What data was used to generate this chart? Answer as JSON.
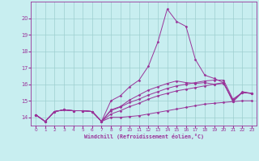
{
  "xlabel": "Windchill (Refroidissement éolien,°C)",
  "bg_color": "#c8eef0",
  "grid_color": "#9ecfcf",
  "line_color": "#993399",
  "xlim": [
    -0.5,
    23.5
  ],
  "ylim": [
    13.5,
    21.0
  ],
  "xticks": [
    0,
    1,
    2,
    3,
    4,
    5,
    6,
    7,
    8,
    9,
    10,
    11,
    12,
    13,
    14,
    15,
    16,
    17,
    18,
    19,
    20,
    21,
    22,
    23
  ],
  "yticks": [
    14,
    15,
    16,
    17,
    18,
    19,
    20
  ],
  "series": [
    [
      14.15,
      13.75,
      14.35,
      14.45,
      14.4,
      14.4,
      14.35,
      13.75,
      14.0,
      14.0,
      14.05,
      14.1,
      14.2,
      14.3,
      14.4,
      14.5,
      14.6,
      14.7,
      14.8,
      14.85,
      14.9,
      14.95,
      15.0,
      15.0
    ],
    [
      14.15,
      13.75,
      14.35,
      14.45,
      14.4,
      14.4,
      14.35,
      13.75,
      14.2,
      14.4,
      14.65,
      14.85,
      15.1,
      15.3,
      15.45,
      15.6,
      15.7,
      15.8,
      15.9,
      16.0,
      16.05,
      15.05,
      15.5,
      15.45
    ],
    [
      14.15,
      13.75,
      14.35,
      14.45,
      14.4,
      14.4,
      14.35,
      13.75,
      14.45,
      14.65,
      15.05,
      15.35,
      15.65,
      15.85,
      16.05,
      16.2,
      16.1,
      16.05,
      16.1,
      16.0,
      16.1,
      14.95,
      15.5,
      15.45
    ],
    [
      14.15,
      13.75,
      14.35,
      14.45,
      14.4,
      14.4,
      14.35,
      13.75,
      15.0,
      15.3,
      15.85,
      16.25,
      17.1,
      18.55,
      20.55,
      19.8,
      19.5,
      17.5,
      16.55,
      16.35,
      16.1,
      14.95,
      15.55,
      15.45
    ],
    [
      14.15,
      13.75,
      14.35,
      14.45,
      14.4,
      14.4,
      14.35,
      13.75,
      14.4,
      14.62,
      14.9,
      15.1,
      15.35,
      15.55,
      15.75,
      15.9,
      16.0,
      16.1,
      16.2,
      16.25,
      16.25,
      15.1,
      15.5,
      15.45
    ]
  ]
}
